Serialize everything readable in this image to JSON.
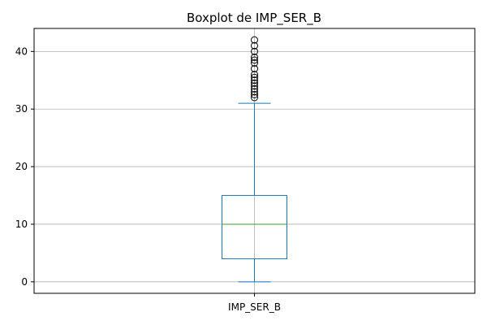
{
  "chart_data": {
    "type": "boxplot",
    "title": "Boxplot de IMP_SER_B",
    "categories": [
      "IMP_SER_B"
    ],
    "xlabel": "",
    "ylabel": "",
    "ylim": [
      -2,
      44
    ],
    "yticks": [
      0,
      10,
      20,
      30,
      40
    ],
    "grid": true,
    "series": [
      {
        "min": 0,
        "q1": 4,
        "median": 10,
        "q3": 15,
        "max": 31,
        "outliers": [
          32,
          32.5,
          33,
          33.5,
          34,
          34.5,
          35,
          35.5,
          36,
          37,
          38,
          38.5,
          39,
          40,
          41,
          42
        ]
      }
    ],
    "colors": {
      "box": "#1f77b4",
      "median": "#2ca02c",
      "grid": "#b0b0b0",
      "outlier": "#000000"
    }
  }
}
